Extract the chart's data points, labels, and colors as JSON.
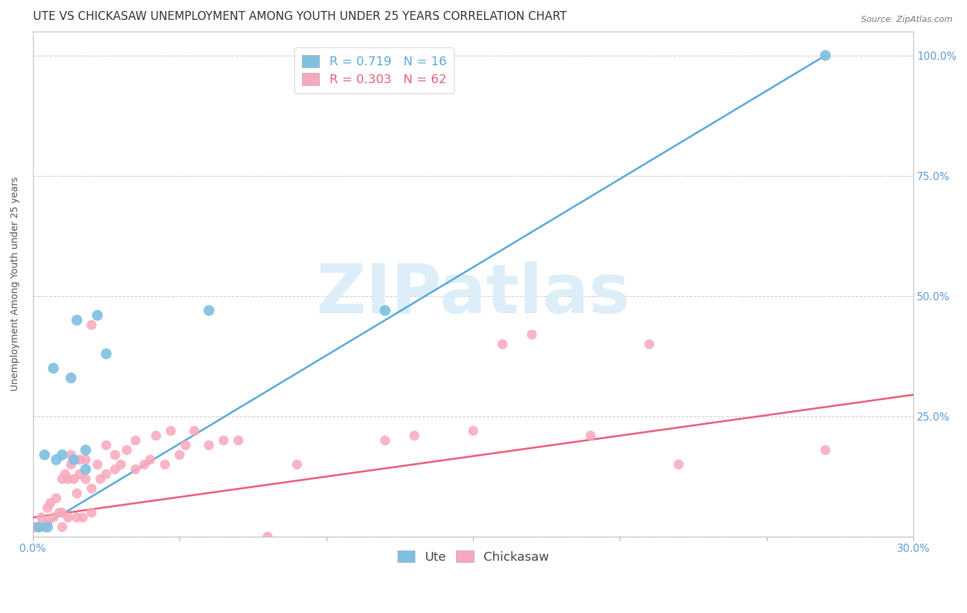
{
  "title": "UTE VS CHICKASAW UNEMPLOYMENT AMONG YOUTH UNDER 25 YEARS CORRELATION CHART",
  "source": "Source: ZipAtlas.com",
  "ylabel_left": "Unemployment Among Youth under 25 years",
  "xlim": [
    0.0,
    0.3
  ],
  "ylim": [
    0.0,
    1.05
  ],
  "xticks": [
    0.0,
    0.05,
    0.1,
    0.15,
    0.2,
    0.25,
    0.3
  ],
  "yticks": [
    0.0,
    0.25,
    0.5,
    0.75,
    1.0
  ],
  "yticklabels_right": [
    "",
    "25.0%",
    "50.0%",
    "75.0%",
    "100.0%"
  ],
  "ute_R": 0.719,
  "ute_N": 16,
  "chickasaw_R": 0.303,
  "chickasaw_N": 62,
  "ute_color": "#7fbfdf",
  "chickasaw_color": "#f8a8bc",
  "ute_line_color": "#5aaadc",
  "chickasaw_line_color": "#e8607a",
  "background_color": "#ffffff",
  "grid_color": "#cccccc",
  "watermark_text": "ZIPatlas",
  "watermark_color": "#ddeef8",
  "ute_x": [
    0.002,
    0.004,
    0.005,
    0.007,
    0.008,
    0.01,
    0.013,
    0.014,
    0.015,
    0.018,
    0.018,
    0.022,
    0.025,
    0.06,
    0.12,
    0.27
  ],
  "ute_y": [
    0.02,
    0.17,
    0.02,
    0.35,
    0.16,
    0.17,
    0.33,
    0.16,
    0.45,
    0.14,
    0.18,
    0.46,
    0.38,
    0.47,
    0.47,
    1.0
  ],
  "chickasaw_x": [
    0.0,
    0.001,
    0.002,
    0.003,
    0.004,
    0.005,
    0.005,
    0.006,
    0.007,
    0.008,
    0.009,
    0.01,
    0.01,
    0.01,
    0.011,
    0.012,
    0.012,
    0.013,
    0.013,
    0.014,
    0.015,
    0.015,
    0.016,
    0.016,
    0.017,
    0.018,
    0.018,
    0.02,
    0.02,
    0.02,
    0.022,
    0.023,
    0.025,
    0.025,
    0.028,
    0.028,
    0.03,
    0.032,
    0.035,
    0.035,
    0.038,
    0.04,
    0.042,
    0.045,
    0.047,
    0.05,
    0.052,
    0.055,
    0.06,
    0.065,
    0.07,
    0.08,
    0.09,
    0.12,
    0.13,
    0.15,
    0.16,
    0.17,
    0.19,
    0.21,
    0.22,
    0.27
  ],
  "chickasaw_y": [
    0.02,
    0.02,
    0.02,
    0.04,
    0.02,
    0.03,
    0.06,
    0.07,
    0.04,
    0.08,
    0.05,
    0.02,
    0.05,
    0.12,
    0.13,
    0.04,
    0.12,
    0.15,
    0.17,
    0.12,
    0.04,
    0.09,
    0.13,
    0.16,
    0.04,
    0.12,
    0.16,
    0.05,
    0.1,
    0.44,
    0.15,
    0.12,
    0.13,
    0.19,
    0.14,
    0.17,
    0.15,
    0.18,
    0.14,
    0.2,
    0.15,
    0.16,
    0.21,
    0.15,
    0.22,
    0.17,
    0.19,
    0.22,
    0.19,
    0.2,
    0.2,
    0.0,
    0.15,
    0.2,
    0.21,
    0.22,
    0.4,
    0.42,
    0.21,
    0.4,
    0.15,
    0.18
  ],
  "ute_line_x": [
    0.0,
    0.27
  ],
  "ute_line_y": [
    0.01,
    1.0
  ],
  "chickasaw_line_x": [
    0.0,
    0.3
  ],
  "chickasaw_line_y": [
    0.04,
    0.295
  ],
  "title_fontsize": 12,
  "axis_label_fontsize": 10,
  "tick_fontsize": 11,
  "legend_fontsize": 13,
  "watermark_fontsize": 72
}
